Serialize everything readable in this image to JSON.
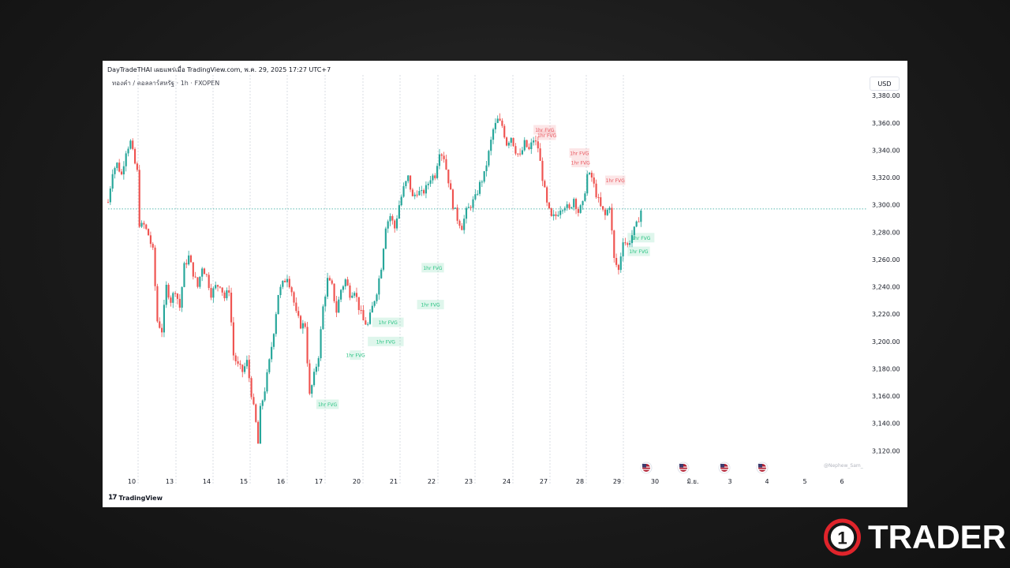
{
  "header": {
    "publish_line": "DayTradeTHAI เผยแพร่เมื่อ TradingView.com, พ.ค. 29, 2025 17:27 UTC+7",
    "symbol_line": "ทองคำ / ดอลลาร์สหรัฐ · 1h · FXOPEN",
    "currency": "USD"
  },
  "footer": {
    "tradingview_label": "TradingView",
    "watermark": "@Nephew_Sam_"
  },
  "brand": {
    "number": "1",
    "name": "TRADER",
    "accent_color": "#e0242b"
  },
  "colors": {
    "up": "#26a69a",
    "down": "#ef5350",
    "bull_fvg": "#26c281",
    "bear_fvg": "#e8545c"
  },
  "chart_data": {
    "type": "candlestick",
    "instrument": "XAUUSD",
    "timeframe": "1h",
    "y_tick_labels": [
      "3,380.00",
      "3,360.00",
      "3,340.00",
      "3,320.00",
      "3,300.00",
      "3,280.00",
      "3,260.00",
      "3,240.00",
      "3,220.00",
      "3,200.00",
      "3,180.00",
      "3,160.00",
      "3,140.00",
      "3,120.00"
    ],
    "y_ticks": [
      3380,
      3360,
      3340,
      3320,
      3300,
      3280,
      3260,
      3240,
      3220,
      3200,
      3180,
      3160,
      3140,
      3120
    ],
    "ylim": [
      3104,
      3394
    ],
    "x_tick_labels": [
      "10",
      "13",
      "14",
      "15",
      "16",
      "17",
      "20",
      "21",
      "22",
      "23",
      "24",
      "27",
      "28",
      "29",
      "30",
      "มิ.ย.",
      "3",
      "4",
      "5",
      "6"
    ],
    "current_price_level": 3297,
    "price_path": [
      [
        0,
        3302
      ],
      [
        2,
        3325
      ],
      [
        4,
        3330
      ],
      [
        6,
        3322
      ],
      [
        8,
        3340
      ],
      [
        10,
        3346
      ],
      [
        12,
        3330
      ],
      [
        13,
        3324
      ],
      [
        14,
        3284
      ],
      [
        16,
        3285
      ],
      [
        18,
        3278
      ],
      [
        20,
        3266
      ],
      [
        22,
        3215
      ],
      [
        24,
        3208
      ],
      [
        26,
        3240
      ],
      [
        28,
        3230
      ],
      [
        30,
        3238
      ],
      [
        32,
        3225
      ],
      [
        34,
        3255
      ],
      [
        36,
        3262
      ],
      [
        38,
        3250
      ],
      [
        40,
        3240
      ],
      [
        42,
        3255
      ],
      [
        44,
        3248
      ],
      [
        46,
        3235
      ],
      [
        48,
        3240
      ],
      [
        50,
        3242
      ],
      [
        52,
        3232
      ],
      [
        54,
        3238
      ],
      [
        56,
        3190
      ],
      [
        58,
        3182
      ],
      [
        60,
        3178
      ],
      [
        62,
        3185
      ],
      [
        64,
        3162
      ],
      [
        66,
        3140
      ],
      [
        67,
        3125
      ],
      [
        68,
        3150
      ],
      [
        70,
        3165
      ],
      [
        72,
        3185
      ],
      [
        74,
        3208
      ],
      [
        76,
        3235
      ],
      [
        78,
        3242
      ],
      [
        80,
        3248
      ],
      [
        82,
        3237
      ],
      [
        84,
        3220
      ],
      [
        86,
        3212
      ],
      [
        88,
        3212
      ],
      [
        90,
        3160
      ],
      [
        92,
        3175
      ],
      [
        94,
        3190
      ],
      [
        96,
        3225
      ],
      [
        98,
        3245
      ],
      [
        100,
        3240
      ],
      [
        102,
        3222
      ],
      [
        104,
        3238
      ],
      [
        106,
        3245
      ],
      [
        108,
        3235
      ],
      [
        110,
        3238
      ],
      [
        112,
        3225
      ],
      [
        114,
        3215
      ],
      [
        116,
        3212
      ],
      [
        118,
        3225
      ],
      [
        120,
        3237
      ],
      [
        122,
        3255
      ],
      [
        124,
        3285
      ],
      [
        126,
        3292
      ],
      [
        128,
        3283
      ],
      [
        130,
        3300
      ],
      [
        132,
        3312
      ],
      [
        134,
        3320
      ],
      [
        136,
        3305
      ],
      [
        138,
        3310
      ],
      [
        140,
        3308
      ],
      [
        142,
        3312
      ],
      [
        144,
        3320
      ],
      [
        146,
        3322
      ],
      [
        148,
        3340
      ],
      [
        150,
        3335
      ],
      [
        152,
        3318
      ],
      [
        154,
        3300
      ],
      [
        156,
        3290
      ],
      [
        158,
        3284
      ],
      [
        160,
        3295
      ],
      [
        162,
        3300
      ],
      [
        164,
        3305
      ],
      [
        166,
        3315
      ],
      [
        168,
        3322
      ],
      [
        170,
        3338
      ],
      [
        172,
        3355
      ],
      [
        174,
        3362
      ],
      [
        176,
        3358
      ],
      [
        178,
        3345
      ],
      [
        180,
        3350
      ],
      [
        182,
        3340
      ],
      [
        184,
        3335
      ],
      [
        186,
        3345
      ],
      [
        188,
        3340
      ],
      [
        190,
        3348
      ],
      [
        192,
        3342
      ],
      [
        194,
        3320
      ],
      [
        196,
        3300
      ],
      [
        198,
        3290
      ],
      [
        200,
        3292
      ],
      [
        202,
        3298
      ],
      [
        204,
        3300
      ],
      [
        206,
        3296
      ],
      [
        208,
        3305
      ],
      [
        210,
        3295
      ],
      [
        212,
        3300
      ],
      [
        214,
        3322
      ],
      [
        216,
        3320
      ],
      [
        218,
        3308
      ],
      [
        220,
        3298
      ],
      [
        222,
        3292
      ],
      [
        224,
        3300
      ],
      [
        226,
        3260
      ],
      [
        228,
        3252
      ],
      [
        230,
        3275
      ],
      [
        232,
        3270
      ],
      [
        234,
        3278
      ],
      [
        236,
        3285
      ],
      [
        238,
        3296
      ]
    ],
    "fvg_zones": [
      {
        "label": "1hr FVG",
        "direction": "bearish",
        "price": 3355,
        "start": 190,
        "end": 200
      },
      {
        "label": "1hr FVG",
        "direction": "bearish",
        "price": 3351,
        "start": 192,
        "end": 200
      },
      {
        "label": "1hr FVG",
        "direction": "bearish",
        "price": 3338,
        "start": 206,
        "end": 215
      },
      {
        "label": "1hr FVG",
        "direction": "bearish",
        "price": 3331,
        "start": 207,
        "end": 215
      },
      {
        "label": "1hr FVG",
        "direction": "bearish",
        "price": 3318,
        "start": 222,
        "end": 231
      },
      {
        "label": "1hr FVG",
        "direction": "bullish",
        "price": 3276,
        "start": 232,
        "end": 244
      },
      {
        "label": "1hr FVG",
        "direction": "bullish",
        "price": 3266,
        "start": 232,
        "end": 242
      },
      {
        "label": "1hr FVG",
        "direction": "bullish",
        "price": 3254,
        "start": 140,
        "end": 150
      },
      {
        "label": "1hr FVG",
        "direction": "bullish",
        "price": 3227,
        "start": 138,
        "end": 150
      },
      {
        "label": "1hr FVG",
        "direction": "bullish",
        "price": 3214,
        "start": 118,
        "end": 132
      },
      {
        "label": "1hr FVG",
        "direction": "bullish",
        "price": 3200,
        "start": 116,
        "end": 132
      },
      {
        "label": "1hr FVG",
        "direction": "bullish",
        "price": 3190,
        "start": 108,
        "end": 113
      },
      {
        "label": "1hr FVG",
        "direction": "bullish",
        "price": 3154,
        "start": 93,
        "end": 103
      }
    ],
    "event_flags": [
      {
        "icon": "us-flag-icon",
        "x_label": "29.8"
      },
      {
        "icon": "us-flag-icon",
        "x_label": "30.8"
      },
      {
        "icon": "us-flag-icon",
        "x_label": "มิ.ย.+0.8"
      },
      {
        "icon": "us-flag-icon",
        "x_label": "3.8"
      }
    ]
  }
}
